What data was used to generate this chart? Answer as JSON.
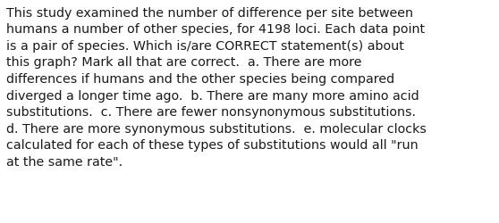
{
  "lines": [
    "This study examined the number of difference per site between",
    "humans a number of other species, for 4198 loci. Each data point",
    "is a pair of species. Which is/are CORRECT statement(s) about",
    "this graph? Mark all that are correct.  a. There are more",
    "differences if humans and the other species being compared",
    "diverged a longer time ago.  b. There are many more amino acid",
    "substitutions.  c. There are fewer nonsynonymous substitutions.",
    "d. There are more synonymous substitutions.  e. molecular clocks",
    "calculated for each of these types of substitutions would all \"run",
    "at the same rate\"."
  ],
  "background_color": "#ffffff",
  "text_color": "#1a1a1a",
  "font_size": 10.3,
  "font_family": "DejaVu Sans"
}
